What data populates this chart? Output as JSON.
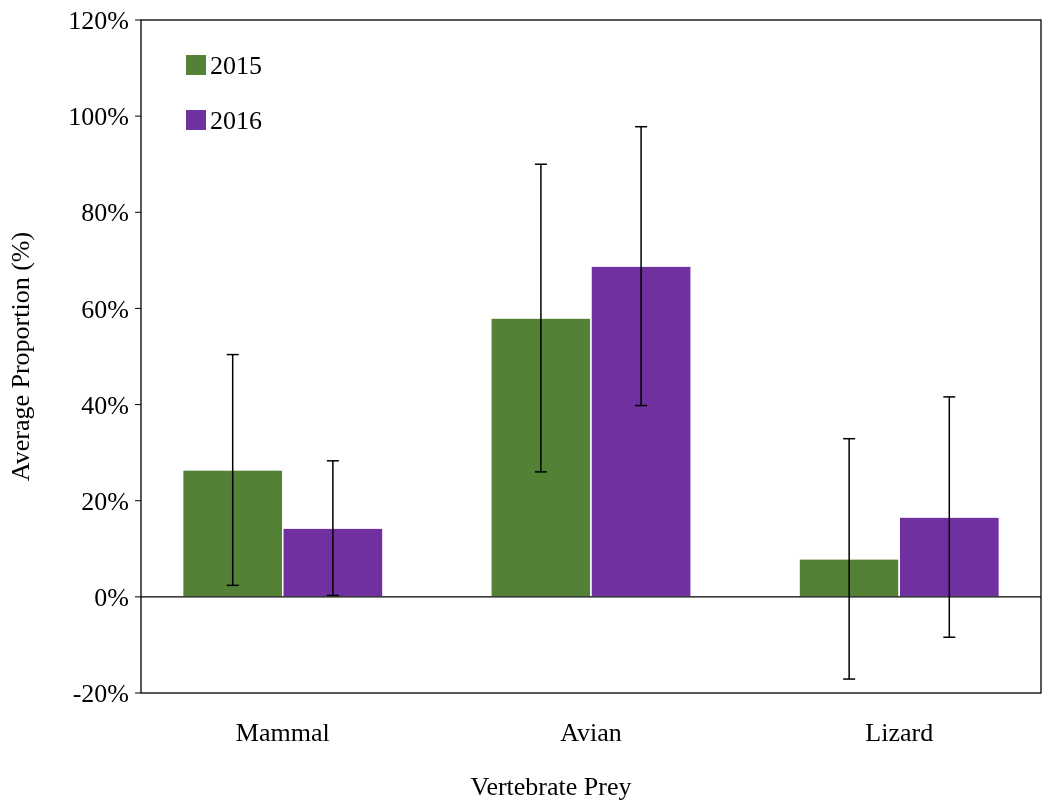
{
  "chart_data": {
    "type": "bar",
    "xlabel": "Vertebrate Prey",
    "ylabel": "Average Proportion (%)",
    "categories": [
      "Mammal",
      "Avian",
      "Lizard"
    ],
    "series": [
      {
        "name": "2015",
        "color": "#538135",
        "values": [
          26.4,
          58.0,
          7.9
        ],
        "errors": [
          24,
          32,
          25
        ]
      },
      {
        "name": "2016",
        "color": "#7030a0",
        "values": [
          14.3,
          68.8,
          16.6
        ],
        "errors": [
          14,
          29,
          25
        ]
      }
    ],
    "ylim": [
      -20,
      120
    ],
    "yticks": [
      {
        "value": -20,
        "label": "-20%"
      },
      {
        "value": 0,
        "label": "0%"
      },
      {
        "value": 20,
        "label": "20%"
      },
      {
        "value": 40,
        "label": "40%"
      },
      {
        "value": 60,
        "label": "60%"
      },
      {
        "value": 80,
        "label": "80%"
      },
      {
        "value": 100,
        "label": "100%"
      },
      {
        "value": 120,
        "label": "120%"
      }
    ],
    "legend": "top left"
  }
}
